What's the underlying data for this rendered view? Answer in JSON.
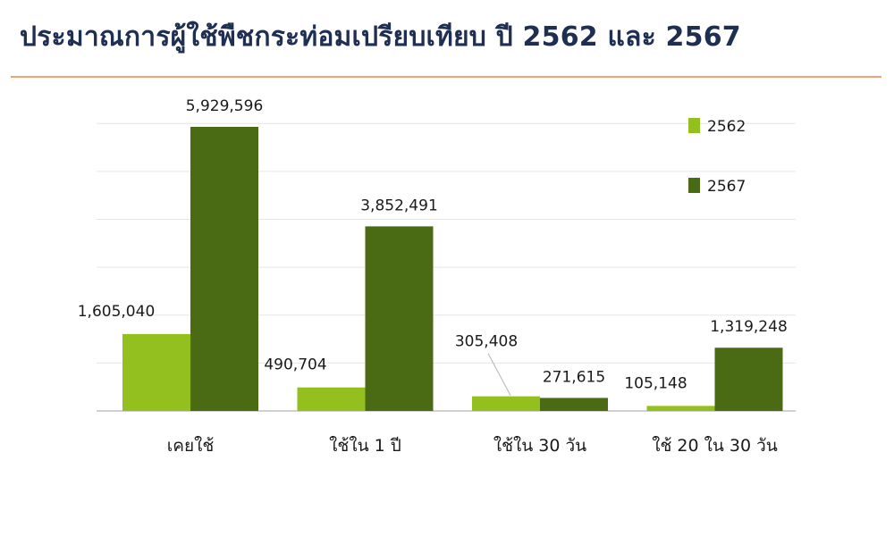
{
  "title": "ประมาณการผู้ใช้พืชกระท่อมเปรียบเทียบ ปี 2562 และ 2567",
  "colors": {
    "series_2562": "#93c01f",
    "series_2567": "#4b6a14",
    "title_text": "#1f2f52",
    "title_rule": "#f0a272",
    "gridline": "#e6e6e6",
    "axis": "#d0d0d0",
    "leader_line": "#bdbdbd"
  },
  "chart_data": {
    "type": "bar",
    "categories": [
      "เคยใช้",
      "ใช้ใน  1  ปี",
      "ใช้ใน 30 วัน",
      "ใช้ 20 ใน 30 วัน"
    ],
    "series": [
      {
        "name": "2562",
        "values": [
          1605040,
          490704,
          305408,
          105148
        ]
      },
      {
        "name": "2567",
        "values": [
          5929596,
          3852491,
          271615,
          1319248
        ]
      }
    ],
    "value_labels": [
      [
        "1,605,040",
        "490,704",
        "305,408",
        "105,148"
      ],
      [
        "5,929,596",
        "3,852,491",
        "271,615",
        "1,319,248"
      ]
    ],
    "ylim": [
      0,
      7000000
    ],
    "grid": true,
    "legend_position": "top-right",
    "xlabel": "",
    "ylabel": ""
  }
}
